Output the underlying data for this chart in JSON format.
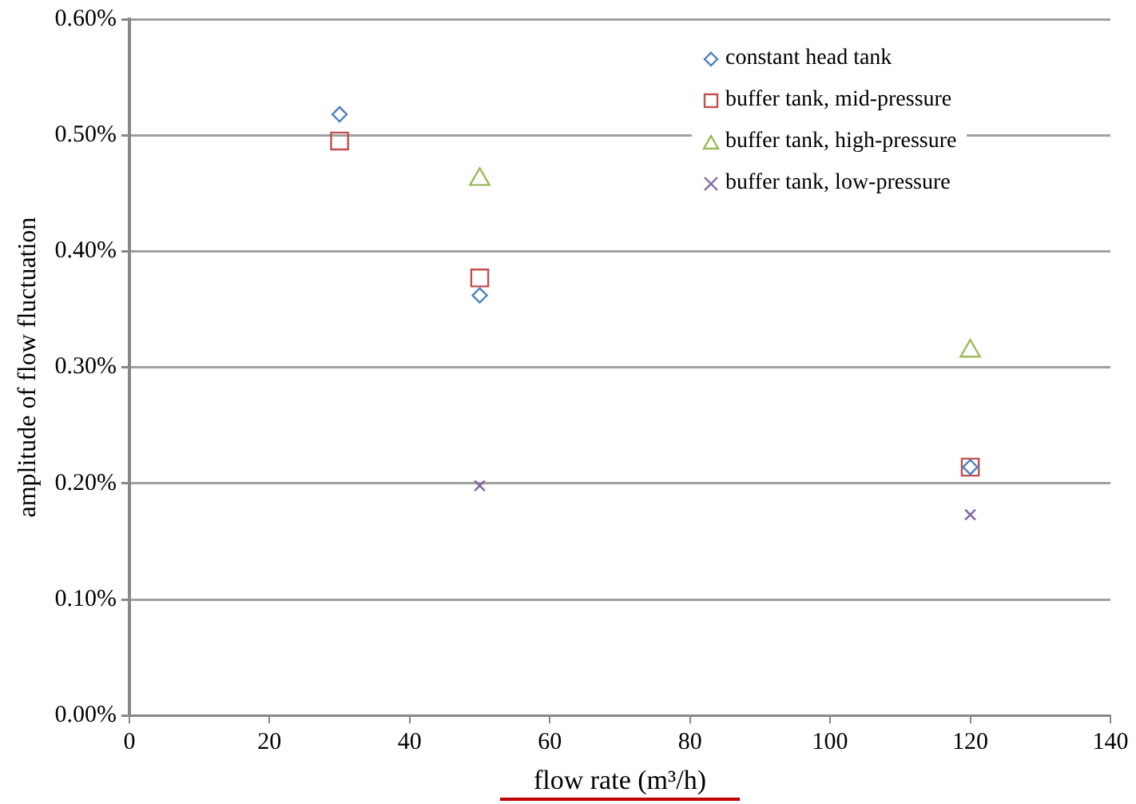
{
  "chart_data": {
    "type": "scatter",
    "xlabel": "flow rate (m³/h)",
    "ylabel": "amplitude of flow fluctuation",
    "xlim": [
      0,
      140
    ],
    "xticks": [
      0,
      20,
      40,
      60,
      80,
      100,
      120,
      140
    ],
    "ylim": [
      0,
      0.6
    ],
    "yticks": [
      {
        "value": 0,
        "label": "0.00%"
      },
      {
        "value": 0.1,
        "label": "0.10%"
      },
      {
        "value": 0.2,
        "label": "0.20%"
      },
      {
        "value": 0.3,
        "label": "0.30%"
      },
      {
        "value": 0.4,
        "label": "0.40%"
      },
      {
        "value": 0.5,
        "label": "0.50%"
      },
      {
        "value": 0.6,
        "label": "0.60%"
      }
    ],
    "grid": "y",
    "legend": "top right",
    "series": [
      {
        "name": "constant head tank",
        "color": "#4f81bd",
        "marker": "diamond",
        "x": [
          30,
          50,
          120
        ],
        "values": [
          0.518,
          0.362,
          0.214
        ]
      },
      {
        "name": "buffer tank, mid-pressure",
        "color": "#c0504d",
        "marker": "square",
        "x": [
          30,
          50,
          120
        ],
        "values": [
          0.495,
          0.377,
          0.214
        ]
      },
      {
        "name": "buffer tank, high-pressure",
        "color": "#9bbb59",
        "marker": "triangle",
        "x": [
          50,
          120
        ],
        "values": [
          0.462,
          0.314
        ]
      },
      {
        "name": "buffer tank, low-pressure",
        "color": "#8064a2",
        "marker": "cross",
        "x": [
          50,
          120
        ],
        "values": [
          0.198,
          0.173
        ]
      }
    ]
  }
}
